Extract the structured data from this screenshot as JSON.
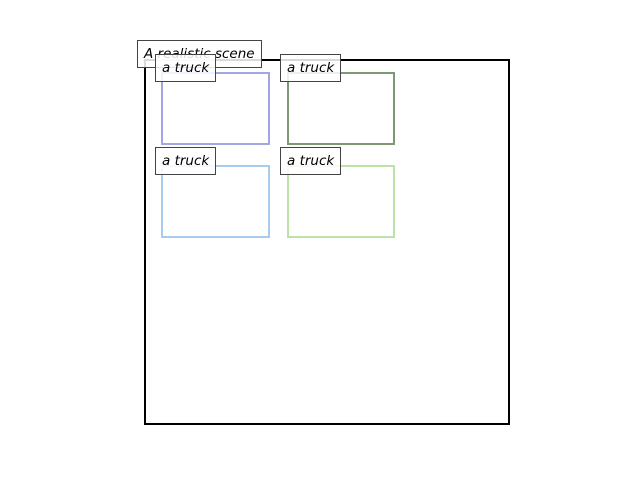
{
  "scene": {
    "caption": "A realistic scene"
  },
  "boxes": [
    {
      "label": "a truck",
      "color": "#a0a8e4"
    },
    {
      "label": "a truck",
      "color": "#7c9874"
    },
    {
      "label": "a truck",
      "color": "#a8cced"
    },
    {
      "label": "a truck",
      "color": "#bde2a8"
    }
  ]
}
